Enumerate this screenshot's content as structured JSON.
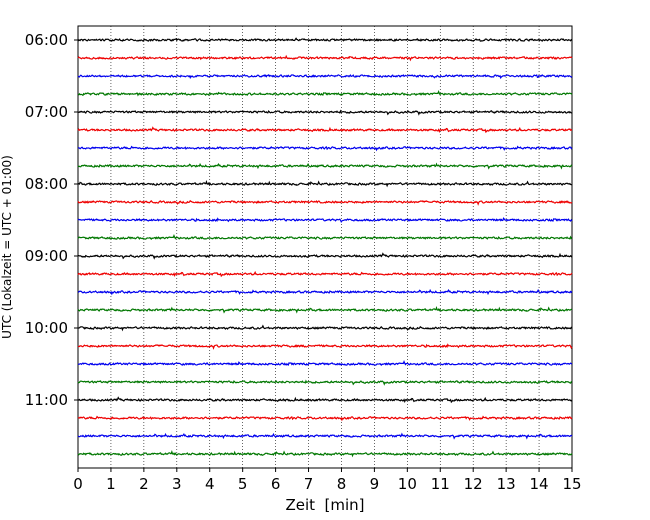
{
  "chart_data": {
    "type": "line",
    "title": "",
    "xlabel": "Zeit  [min]",
    "ylabel": "UTC (Lokalzeit = UTC + 01:00)",
    "xlim": [
      0,
      15
    ],
    "x_ticks": [
      "0",
      "1",
      "2",
      "3",
      "4",
      "5",
      "6",
      "7",
      "8",
      "9",
      "10",
      "11",
      "12",
      "13",
      "14",
      "15"
    ],
    "y_tick_labels": [
      "06:00",
      "07:00",
      "08:00",
      "09:00",
      "10:00",
      "11:00"
    ],
    "grid": "vertical dotted at each minute",
    "trace_interval_minutes": 15,
    "traces_start": "06:00",
    "trace_count": 24,
    "trace_color_cycle": [
      "#000000",
      "#ee0000",
      "#0000ee",
      "#007700"
    ],
    "legend": "none"
  }
}
